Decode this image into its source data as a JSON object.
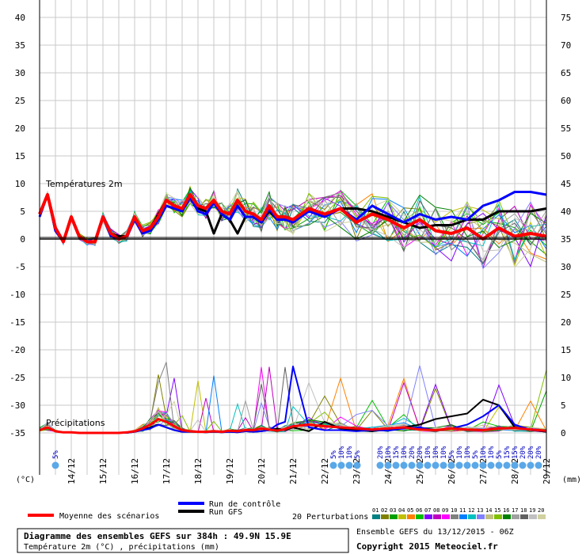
{
  "chart_data": {
    "type": "line",
    "title": "Diagramme des ensembles GEFS sur 384h : 49.9N 15.9E",
    "subtitle": "Température 2m (°C) , précipitations (mm)",
    "run_info": "Ensemble GEFS du 13/12/2015 - 06Z",
    "copyright": "Copyright 2015 Meteociel.fr",
    "panel_labels": {
      "temperature": "Températures 2m",
      "precipitation": "Précipitations"
    },
    "left_axis_unit": "(°C)",
    "right_axis_unit": "(mm)",
    "left_ticks": [
      40,
      35,
      30,
      25,
      20,
      15,
      10,
      5,
      0,
      -5,
      -10,
      -15,
      -20,
      -25,
      -30,
      -35
    ],
    "right_ticks": [
      75,
      70,
      65,
      60,
      55,
      50,
      45,
      40,
      35,
      30,
      25,
      20,
      15,
      10,
      5,
      0
    ],
    "dates": [
      "14/12",
      "15/12",
      "16/12",
      "17/12",
      "18/12",
      "19/12",
      "20/12",
      "21/12",
      "22/12",
      "23/12",
      "24/12",
      "25/12",
      "26/12",
      "27/12",
      "28/12",
      "29/12"
    ],
    "legend": {
      "mean": "Moyenne des scénarios",
      "control": "Run de contrôle",
      "gfs": "Run GFS",
      "perturbations": "20 Perturbations",
      "perturbation_ids": [
        "01",
        "02",
        "03",
        "04",
        "05",
        "06",
        "07",
        "08",
        "09",
        "10",
        "11",
        "12",
        "13",
        "14",
        "15",
        "16",
        "17",
        "18",
        "19",
        "20"
      ],
      "perturbation_colors": [
        "#008080",
        "#808000",
        "#00a000",
        "#c0c000",
        "#ff8000",
        "#00c000",
        "#8000ff",
        "#c000c0",
        "#ff00ff",
        "#808080",
        "#0080ff",
        "#00c0c0",
        "#8080ff",
        "#c0c080",
        "#80c000",
        "#008000",
        "#a0a0a0",
        "#606060",
        "#c0c0c0",
        "#d0d0a0"
      ]
    },
    "colors": {
      "mean": "#ff0000",
      "control": "#0000ff",
      "gfs": "#000000",
      "snow": "#5aa8e8"
    },
    "x_hours": [
      0,
      6,
      12,
      18,
      24,
      30,
      36,
      42,
      48,
      54,
      60,
      66,
      72,
      78,
      84,
      90,
      96,
      102,
      108,
      114,
      120,
      126,
      132,
      138,
      144,
      150,
      156,
      162,
      168,
      174,
      180,
      186,
      192,
      204,
      216,
      228,
      240,
      252,
      264,
      276,
      288,
      300,
      312,
      324,
      336,
      348,
      360,
      372,
      384
    ],
    "series": [
      {
        "name": "Moyenne des scénarios",
        "key": "mean",
        "temp": [
          4.5,
          8,
          2,
          -0.5,
          4,
          0.5,
          -0.5,
          -0.5,
          4,
          1,
          0,
          0.5,
          4,
          1.5,
          2,
          4,
          7,
          6,
          5.5,
          8,
          6,
          5.5,
          7,
          5,
          4.5,
          7,
          5,
          4.5,
          3.5,
          6,
          4,
          4,
          3.5,
          5.5,
          4.5,
          5.5,
          3,
          4.5,
          3.5,
          2,
          3.5,
          1.5,
          1,
          2,
          0,
          2,
          0.5,
          1,
          0.5
        ],
        "precip": [
          0.5,
          1,
          0.3,
          0.1,
          0.1,
          0,
          0,
          0,
          0,
          0,
          0,
          0.1,
          0.3,
          0.8,
          1.5,
          2.5,
          2,
          1.2,
          0.5,
          0.3,
          0.2,
          0.2,
          0.3,
          0.2,
          0.4,
          0.3,
          0.5,
          0.5,
          0.8,
          0.6,
          0.4,
          0.7,
          1.2,
          1.5,
          1.2,
          1,
          0.8,
          0.6,
          0.8,
          1,
          0.6,
          0.5,
          0.8,
          0.6,
          0.5,
          0.8,
          0.9,
          0.6,
          0.4
        ]
      },
      {
        "name": "Run de contrôle",
        "key": "control",
        "temp": [
          4,
          8,
          1.5,
          -0.5,
          4,
          0.5,
          -0.5,
          -0.5,
          4,
          0.5,
          0,
          0.5,
          3.5,
          1,
          1.5,
          3.5,
          6,
          5.5,
          5,
          7.5,
          5,
          4.5,
          6.5,
          4.5,
          3.5,
          6,
          4,
          4,
          3,
          5.5,
          3.5,
          3.5,
          3,
          5,
          4,
          5.5,
          3.5,
          6,
          4.5,
          3,
          4.5,
          3.5,
          4,
          3.5,
          6,
          7,
          8.5,
          8.5,
          8
        ],
        "precip": [
          0.5,
          1,
          0.3,
          0.1,
          0.1,
          0,
          0,
          0,
          0,
          0,
          0,
          0,
          0.2,
          0.5,
          0.8,
          1.5,
          1,
          0.5,
          0.2,
          0.2,
          0.2,
          0.1,
          0.2,
          0.1,
          0.2,
          0.1,
          0.3,
          0.2,
          0.3,
          0.5,
          1.5,
          2,
          12,
          1,
          0.5,
          0.5,
          0.3,
          0.5,
          0.4,
          0.8,
          1,
          0.5,
          0.8,
          1.5,
          3,
          5,
          1.5,
          0.5,
          0.3
        ]
      },
      {
        "name": "Run GFS",
        "key": "gfs",
        "temp": [
          4.5,
          8,
          1.5,
          -0.5,
          4,
          0.5,
          -0.5,
          -0.5,
          4,
          1,
          0.5,
          0.5,
          4,
          1.5,
          2,
          4.5,
          7,
          6,
          5,
          8,
          5.5,
          5,
          1,
          4.5,
          3.5,
          1,
          4,
          4,
          3,
          5,
          3.5,
          3.5,
          3.5,
          5,
          4.5,
          5.5,
          5.5,
          5,
          4,
          3,
          2,
          2.5,
          2.5,
          3.5,
          3.5,
          5,
          5,
          5,
          5.5
        ],
        "precip": [
          0.5,
          1,
          0.3,
          0.1,
          0.1,
          0,
          0,
          0,
          0,
          0,
          0,
          0,
          0.2,
          0.5,
          1,
          1.5,
          1,
          0.5,
          0.2,
          0.2,
          0.2,
          0.1,
          0.2,
          0.1,
          0.2,
          0.1,
          0.3,
          0.2,
          0.3,
          0.5,
          0.8,
          0.5,
          1,
          0.3,
          2,
          0.8,
          0.5,
          0.3,
          0.6,
          1,
          1.5,
          2.5,
          3,
          3.5,
          6,
          5,
          1,
          0.5,
          0.2
        ]
      }
    ],
    "ylim_temp": [
      -35,
      40
    ],
    "ylim_precip": [
      0,
      75
    ],
    "grid": true
  }
}
